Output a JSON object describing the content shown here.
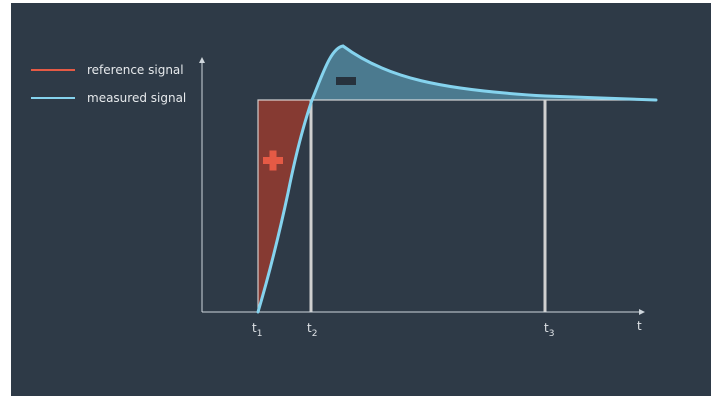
{
  "legend": {
    "reference_label": "reference signal",
    "measured_label": "measured signal"
  },
  "colors": {
    "background": "#2e3a47",
    "reference": "#e55a45",
    "measured": "#85d3ee",
    "positive_area": "#8b3a32",
    "negative_area": "#4d7d94",
    "axis": "#cfd6dc",
    "marker_line": "#d0d0d0"
  },
  "axis": {
    "x_label": "t",
    "ticks": [
      {
        "base": "t",
        "sub": "1"
      },
      {
        "base": "t",
        "sub": "2"
      },
      {
        "base": "t",
        "sub": "3"
      }
    ]
  },
  "symbols": {
    "positive": "plus",
    "negative": "minus"
  }
}
